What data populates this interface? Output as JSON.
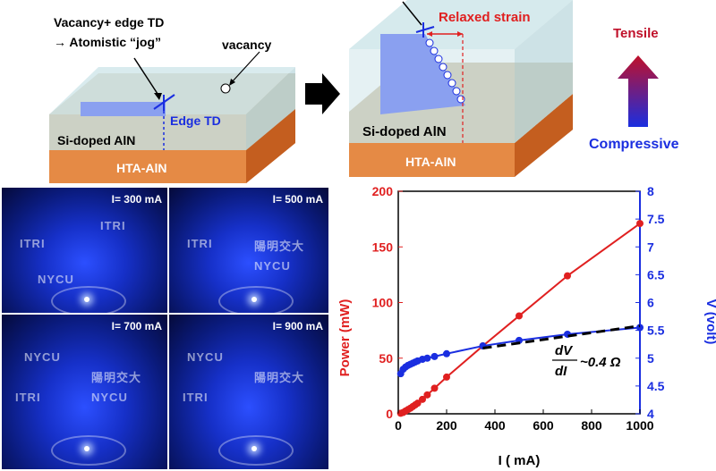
{
  "diagram_left": {
    "title_line1": "Vacancy+ edge TD",
    "title_line2": "→ Atomistic “jog”",
    "vacancy": "vacancy",
    "edge_td": "Edge TD",
    "layer_top": "Si-doped AlN",
    "layer_bottom": "HTA-AlN"
  },
  "diagram_right": {
    "relaxed_strain": "Relaxed strain",
    "layer_top": "Si-doped AlN",
    "layer_bottom": "HTA-AlN"
  },
  "legend_arrow": {
    "top": "Tensile",
    "bottom": "Compressive"
  },
  "photos": [
    {
      "label": "I= 300 mA"
    },
    {
      "label": "I= 500 mA"
    },
    {
      "label": "I= 700 mA"
    },
    {
      "label": "I= 900 mA"
    }
  ],
  "photo_watermarks": [
    "ITRI",
    "NYCU",
    "陽明交大"
  ],
  "chart_data": {
    "type": "line",
    "xlabel": "I ( mA)",
    "ylabel_left": "Power (mW)",
    "ylabel_right": "V (volt)",
    "xlim": [
      0,
      1000
    ],
    "ylim_left": [
      0,
      200
    ],
    "ylim_right": [
      4,
      8
    ],
    "x_ticks": [
      0,
      200,
      400,
      600,
      800,
      1000
    ],
    "y_left_ticks": [
      0,
      50,
      100,
      150,
      200
    ],
    "y_right_ticks": [
      4,
      4.5,
      5,
      5.5,
      6,
      6.5,
      7,
      7.5,
      8
    ],
    "annotation": "dV/dI ~0.4 Ω",
    "annotation_num": "dV",
    "annotation_den": "dI",
    "annotation_rest": "~0.4 Ω",
    "series": [
      {
        "axis": "left",
        "color": "#e02020",
        "x": [
          10,
          20,
          30,
          40,
          50,
          60,
          70,
          80,
          100,
          120,
          150,
          200,
          350,
          500,
          700,
          1000
        ],
        "values": [
          0.5,
          1.2,
          2.5,
          3.8,
          5,
          6.5,
          8,
          9.5,
          13,
          17,
          23,
          33,
          61,
          88,
          124,
          171
        ]
      },
      {
        "axis": "right",
        "color": "#1a2ee0",
        "x": [
          10,
          20,
          30,
          40,
          50,
          60,
          70,
          80,
          100,
          120,
          150,
          200,
          350,
          500,
          700,
          1000
        ],
        "values": [
          4.72,
          4.8,
          4.84,
          4.87,
          4.89,
          4.91,
          4.93,
          4.95,
          4.98,
          5.0,
          5.03,
          5.08,
          5.22,
          5.32,
          5.43,
          5.55
        ]
      }
    ],
    "fit_line": {
      "x": [
        350,
        1000
      ],
      "values": [
        5.18,
        5.58
      ],
      "color": "#000000"
    }
  },
  "colors": {
    "red": "#e02020",
    "blue": "#1a2ee0",
    "orange": "#e07a30",
    "tan": "#c2b59b",
    "glass": "#cfe6ea",
    "film": "#8aa0f0"
  }
}
